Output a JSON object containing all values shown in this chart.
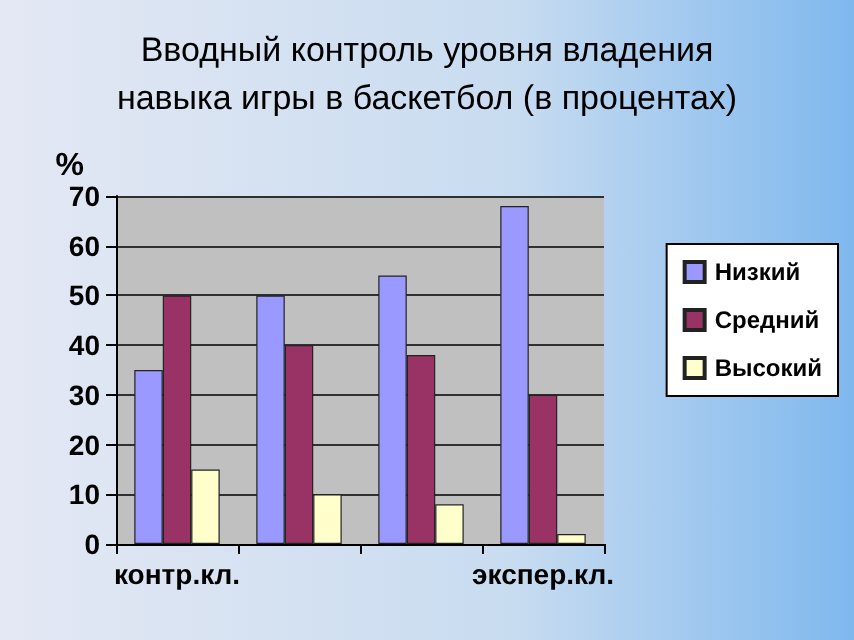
{
  "chart_data": {
    "type": "bar",
    "title": "Вводный контроль уровня владения\nнавыка игры в баскетбол (в процентах)",
    "ylabel": "%",
    "categories": [
      "контр.кл.",
      null,
      null,
      "экспер.кл."
    ],
    "series": [
      {
        "name": "Низкий",
        "color": "#9999ff",
        "values": [
          35,
          50,
          54,
          68
        ]
      },
      {
        "name": "Средний",
        "color": "#993366",
        "values": [
          50,
          40,
          38,
          30
        ]
      },
      {
        "name": "Высокий",
        "color": "#ffffcc",
        "values": [
          15,
          10,
          8,
          2
        ]
      }
    ],
    "ylim": [
      0,
      70
    ],
    "yticks": [
      0,
      10,
      20,
      30,
      40,
      50,
      60,
      70
    ],
    "grid": "y",
    "legend": "right"
  }
}
